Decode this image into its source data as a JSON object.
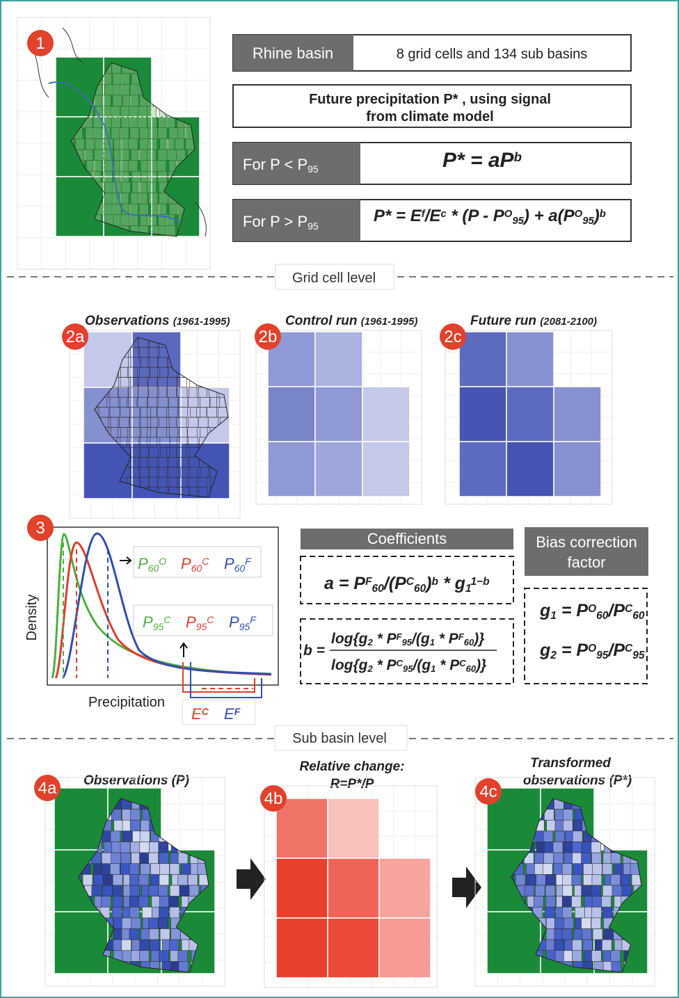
{
  "steps": {
    "s1": "1",
    "s2a": "2a",
    "s2b": "2b",
    "s2c": "2c",
    "s3": "3",
    "s4a": "4a",
    "s4b": "4b",
    "s4c": "4c"
  },
  "top": {
    "basin_label": "Rhine basin",
    "basin_desc": "8 grid cells and 134 sub basins",
    "future_line1": "Future  precipitation P* , using signal",
    "future_line2": "from climate model",
    "low_label": [
      "For P < P",
      "95"
    ],
    "low_formula": [
      "P* = aP",
      "b"
    ],
    "high_label": [
      "For P > P",
      "95"
    ],
    "high_formula": [
      "P* = E",
      "f",
      "/E",
      "c",
      " * (P - P",
      "O",
      "95",
      ") + a(P",
      "O",
      "95",
      ")",
      "b"
    ]
  },
  "dividers": {
    "grid": "Grid cell level",
    "sub": "Sub basin level"
  },
  "panels2": {
    "obs": [
      "Observations ",
      "(1961-1995)"
    ],
    "control": [
      "Control run ",
      "(1961-1995)"
    ],
    "future": [
      "Future run ",
      "(2081-2100)"
    ]
  },
  "density": {
    "ylabel": "Density",
    "xlabel": "Precipitation",
    "p60": [
      [
        "P",
        "60",
        "O"
      ],
      [
        "P",
        "60",
        "C"
      ],
      [
        "P",
        "60",
        "F"
      ]
    ],
    "p95": [
      [
        "P",
        "95",
        "C"
      ],
      [
        "P",
        "95",
        "C"
      ],
      [
        "P",
        "95",
        "F"
      ]
    ],
    "ec": [
      "E",
      "C"
    ],
    "ef": [
      "E",
      "F"
    ]
  },
  "coefficients": {
    "header": "Coefficients",
    "a": [
      "a = P",
      "F",
      "60",
      "/(P",
      "C",
      "60",
      ")",
      "b",
      " * g",
      "1",
      "1−b"
    ],
    "b_prefix": "b =",
    "b_num": [
      "log{g",
      "2",
      " * P",
      "F",
      "95",
      "/(g",
      "1",
      " * P",
      "F",
      "60",
      ")}"
    ],
    "b_den": [
      "log{g",
      "2",
      " * P",
      "C",
      "95",
      "/(g",
      "1",
      " * P",
      "C",
      "60",
      ")}"
    ]
  },
  "bias": {
    "header_line1": "Bias correction",
    "header_line2": "factor",
    "g1": [
      "g",
      "1",
      " = P",
      "O",
      "60",
      "/P",
      "C",
      "60"
    ],
    "g2": [
      "g",
      "2",
      " = P",
      "O",
      "95",
      "/P",
      "C",
      "95"
    ]
  },
  "panels4": {
    "obs": "Observations (P)",
    "rel1": "Relative change:",
    "rel2": "R=P*/P",
    "tr1": "Transformed",
    "tr2": "observations (P*)"
  }
}
